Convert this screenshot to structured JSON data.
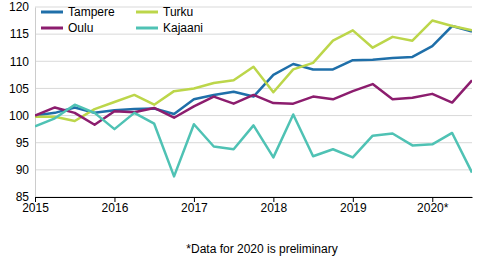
{
  "chart_data": {
    "type": "line",
    "categories": [
      "2015",
      null,
      null,
      null,
      "2016",
      null,
      null,
      null,
      "2017",
      null,
      null,
      null,
      "2018",
      null,
      null,
      null,
      "2019",
      null,
      null,
      null,
      "2020*",
      null,
      null
    ],
    "series": [
      {
        "name": "Tampere",
        "color": "#1f6fa9",
        "values": [
          100,
          100.5,
          101.5,
          100.5,
          101,
          101.2,
          101.3,
          100.3,
          103,
          103.8,
          104.4,
          103.5,
          107.5,
          109.5,
          108.5,
          108.5,
          110.2,
          110.3,
          110.6,
          110.8,
          112.8,
          116.5,
          115.5
        ]
      },
      {
        "name": "Turku",
        "color": "#bcd64a",
        "values": [
          99.8,
          99.8,
          99,
          101.2,
          102.5,
          103.8,
          102,
          104.5,
          105,
          106,
          106.5,
          109,
          104.3,
          108.5,
          109.7,
          113.8,
          115.7,
          112.5,
          114.5,
          113.8,
          117.5,
          116.5,
          115.7
        ]
      },
      {
        "name": "Oulu",
        "color": "#8c1d6e",
        "values": [
          100,
          101.5,
          100.5,
          98.3,
          100.8,
          100.6,
          101.4,
          99.6,
          101.7,
          103.5,
          102.2,
          103.8,
          102.3,
          102.2,
          103.5,
          103,
          104.5,
          105.8,
          103,
          103.3,
          104,
          102.4,
          106.5
        ]
      },
      {
        "name": "Kajaani",
        "color": "#4fc2b4",
        "values": [
          98,
          99.5,
          102,
          100.5,
          97.5,
          100.5,
          98.5,
          88.8,
          98.4,
          94.3,
          93.8,
          98.2,
          92.3,
          100.2,
          92.5,
          93.8,
          92.3,
          96.3,
          96.7,
          94.5,
          94.7,
          96.8,
          89.5
        ]
      }
    ],
    "ylim": [
      85,
      120
    ],
    "yticks": [
      85,
      90,
      95,
      100,
      105,
      110,
      115,
      120
    ],
    "grid": true,
    "legend": "upper left",
    "annotations": [
      "*Data for 2020 is preliminary"
    ]
  }
}
